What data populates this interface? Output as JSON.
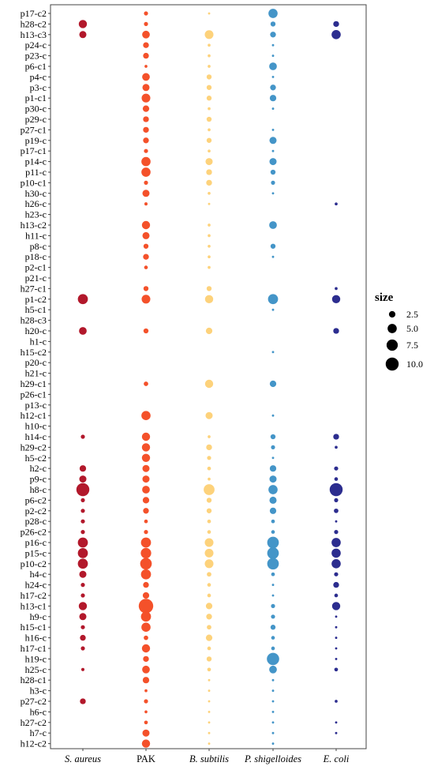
{
  "chart_data": {
    "type": "scatter",
    "subtype": "dot-matrix",
    "x_categories": [
      "S. aureus",
      "PAK",
      "B. subtilis",
      "P. shigelloides",
      "E. coli"
    ],
    "x_categories_italic": [
      true,
      false,
      true,
      true,
      true
    ],
    "y_categories": [
      "p17-c2",
      "h28-c2",
      "h13-c3",
      "p24-c",
      "p23-c",
      "p6-c1",
      "p4-c",
      "p3-c",
      "p1-c1",
      "p30-c",
      "p29-c",
      "p27-c1",
      "p19-c",
      "p17-c1",
      "p14-c",
      "p11-c",
      "p10-c1",
      "h30-c",
      "h26-c",
      "h23-c",
      "h13-c2",
      "h11-c",
      "p8-c",
      "p18-c",
      "p2-c1",
      "p21-c",
      "h27-c1",
      "p1-c2",
      "h5-c1",
      "h28-c3",
      "h20-c",
      "h1-c",
      "h15-c2",
      "p20-c",
      "h21-c",
      "h29-c1",
      "p26-c1",
      "p13-c",
      "h12-c1",
      "h10-c",
      "h14-c",
      "h29-c2",
      "h5-c2",
      "h2-c",
      "p9-c",
      "h8-c",
      "p6-c2",
      "p2-c2",
      "p28-c",
      "p26-c2",
      "p16-c",
      "p15-c",
      "p10-c2",
      "h4-c",
      "h24-c",
      "h17-c2",
      "h13-c1",
      "h9-c",
      "h15-c1",
      "h16-c",
      "h17-c1",
      "h19-c",
      "h25-c",
      "h28-c1",
      "h3-c",
      "p27-c2",
      "h6-c",
      "h27-c2",
      "h7-c",
      "h12-c2"
    ],
    "series": [
      {
        "name": "S. aureus",
        "color": "#b2182b",
        "sizes": [
          0,
          4,
          3,
          0,
          0,
          0,
          0,
          0,
          0,
          0,
          0,
          0,
          0,
          0,
          0,
          0,
          0,
          0,
          0,
          0,
          0,
          0,
          0,
          0,
          0,
          0,
          0,
          6,
          0,
          0,
          3.5,
          0,
          0,
          0,
          0,
          0,
          0,
          0,
          0,
          0,
          1,
          0,
          0,
          2.5,
          3,
          10,
          1,
          1,
          1,
          1,
          6,
          6,
          6,
          3,
          1,
          1,
          4,
          3,
          1,
          2,
          1,
          0,
          0.6,
          0,
          0,
          2,
          0,
          0,
          0,
          0
        ]
      },
      {
        "name": "PAK",
        "color": "#f4512a",
        "sizes": [
          1,
          1,
          3.5,
          2,
          2,
          0.5,
          3.5,
          3,
          4.5,
          2.5,
          2,
          2,
          2,
          1,
          5,
          5,
          1,
          3,
          0.6,
          0,
          4,
          3,
          1.5,
          2,
          0.8,
          0,
          1.5,
          4.5,
          0,
          0,
          1.5,
          0,
          0,
          0,
          0,
          1.2,
          0,
          0,
          5,
          0,
          4,
          4,
          4,
          3,
          3,
          3.5,
          2.5,
          2,
          0.8,
          1,
          6,
          6.5,
          8,
          6,
          2,
          2.5,
          12.5,
          6,
          5,
          1.2,
          4,
          2,
          3.5,
          2.5,
          0.5,
          1,
          0.5,
          0.8,
          3,
          4
        ]
      },
      {
        "name": "B. subtilis",
        "color": "#fdd27b",
        "sizes": [
          0.3,
          0,
          4.5,
          0.5,
          0.5,
          0.5,
          1.5,
          1.5,
          1.5,
          0.5,
          1.5,
          0.5,
          1.5,
          0.5,
          3,
          2,
          2,
          0.5,
          0.3,
          0,
          0.5,
          0.5,
          0.5,
          0.5,
          0.5,
          0,
          1.5,
          4,
          0,
          0,
          2.5,
          0,
          0,
          0,
          0,
          4,
          0,
          0,
          3,
          0,
          0.5,
          2,
          1,
          0.8,
          0.5,
          7,
          1.5,
          1.5,
          0.8,
          0.8,
          4.5,
          4.5,
          4.5,
          1.2,
          0.8,
          0.8,
          2.5,
          2,
          1.2,
          2.5,
          0.8,
          1.5,
          0.8,
          0.3,
          0.3,
          0.3,
          0.3,
          0.3,
          0.3,
          0.3
        ]
      },
      {
        "name": "P. shigelloides",
        "color": "#4495c8",
        "sizes": [
          5,
          1.5,
          2,
          0.3,
          0.3,
          3.5,
          0.3,
          2,
          2.5,
          0.3,
          0,
          0.3,
          3,
          0.3,
          3,
          1.5,
          1,
          0.3,
          0,
          0,
          3.5,
          0,
          1.5,
          0.3,
          0,
          0,
          0,
          6,
          0.3,
          0,
          0,
          0,
          0.3,
          0,
          0,
          2.5,
          0,
          0,
          0.3,
          0,
          1.5,
          1,
          0.3,
          2.5,
          3,
          5,
          3,
          2.5,
          0.8,
          0.8,
          8,
          8,
          8,
          0.8,
          0.3,
          0.3,
          1,
          1,
          1.5,
          0.8,
          0.8,
          9,
          3.5,
          0.3,
          0.3,
          0.3,
          0.3,
          0.3,
          0.3,
          0.3
        ]
      },
      {
        "name": "E. coli",
        "color": "#2c2d8f",
        "sizes": [
          0,
          2,
          5,
          0,
          0,
          0,
          0,
          0,
          0,
          0,
          0,
          0,
          0,
          0,
          0,
          0,
          0,
          0,
          0.5,
          0,
          0,
          0,
          0,
          0,
          0,
          0,
          0.5,
          4,
          0,
          0,
          2,
          0,
          0,
          0,
          0,
          0,
          0,
          0,
          0,
          0,
          2,
          0.5,
          0,
          1,
          0.8,
          10,
          1,
          1.2,
          0.3,
          1,
          5,
          5,
          5,
          1,
          2,
          0.8,
          4,
          0.3,
          0.3,
          0.3,
          0.3,
          0.3,
          0.8,
          0,
          0,
          0.5,
          0,
          0.3,
          0.3,
          0
        ]
      }
    ],
    "legend": {
      "title": "size",
      "placement": "right",
      "entries": [
        {
          "label": "2.5",
          "value": 2.5
        },
        {
          "label": "5.0",
          "value": 5.0
        },
        {
          "label": "7.5",
          "value": 7.5
        },
        {
          "label": "10.0",
          "value": 10.0
        }
      ]
    },
    "grid": false,
    "xlabel": "",
    "ylabel": "",
    "title": ""
  }
}
